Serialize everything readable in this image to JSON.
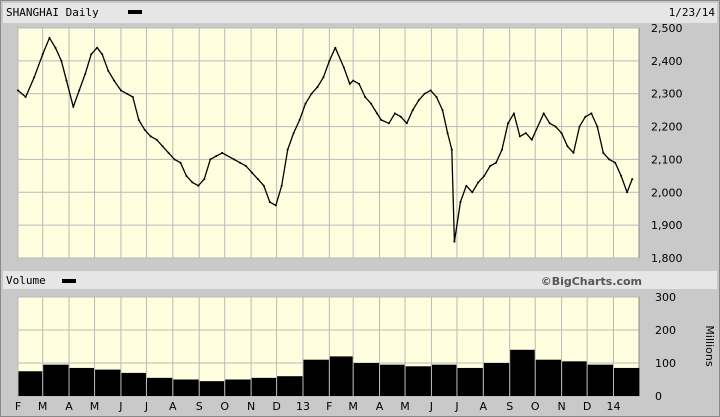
{
  "header": {
    "title": "SHANGHAI Daily",
    "date": "1/23/14"
  },
  "volume_panel": {
    "title": "Volume",
    "watermark": "©BigCharts.com",
    "unit_label": "Millions"
  },
  "colors": {
    "plot_background": "#ffffe0",
    "frame": "#c9c9c9",
    "header_strip": "#e6e6e6",
    "grid": "#b9b9b9",
    "series": "#000000"
  },
  "chart_data": [
    {
      "type": "line",
      "title": "SHANGHAI Daily",
      "x": [
        "2012-02-01",
        "2012-02-10",
        "2012-02-20",
        "2012-03-01",
        "2012-03-09",
        "2012-03-16",
        "2012-03-23",
        "2012-03-29",
        "2012-04-06",
        "2012-04-13",
        "2012-04-20",
        "2012-04-27",
        "2012-05-04",
        "2012-05-10",
        "2012-05-17",
        "2012-05-24",
        "2012-06-01",
        "2012-06-08",
        "2012-06-15",
        "2012-06-22",
        "2012-06-29",
        "2012-07-06",
        "2012-07-13",
        "2012-07-20",
        "2012-07-27",
        "2012-08-03",
        "2012-08-10",
        "2012-08-17",
        "2012-08-24",
        "2012-08-31",
        "2012-09-07",
        "2012-09-14",
        "2012-09-21",
        "2012-09-28",
        "2012-10-12",
        "2012-10-19",
        "2012-10-26",
        "2012-11-02",
        "2012-11-09",
        "2012-11-16",
        "2012-11-23",
        "2012-11-30",
        "2012-12-07",
        "2012-12-14",
        "2012-12-21",
        "2012-12-28",
        "2013-01-04",
        "2013-01-11",
        "2013-01-18",
        "2013-01-25",
        "2013-02-01",
        "2013-02-08",
        "2013-02-18",
        "2013-02-25",
        "2013-03-01",
        "2013-03-08",
        "2013-03-15",
        "2013-03-22",
        "2013-03-29",
        "2013-04-03",
        "2013-04-12",
        "2013-04-19",
        "2013-04-26",
        "2013-05-03",
        "2013-05-10",
        "2013-05-17",
        "2013-05-24",
        "2013-05-31",
        "2013-06-07",
        "2013-06-14",
        "2013-06-20",
        "2013-06-25",
        "2013-06-28",
        "2013-07-05",
        "2013-07-12",
        "2013-07-19",
        "2013-07-26",
        "2013-08-02",
        "2013-08-09",
        "2013-08-16",
        "2013-08-23",
        "2013-08-30",
        "2013-09-06",
        "2013-09-13",
        "2013-09-20",
        "2013-09-27",
        "2013-10-11",
        "2013-10-18",
        "2013-10-25",
        "2013-11-01",
        "2013-11-08",
        "2013-11-15",
        "2013-11-22",
        "2013-11-29",
        "2013-12-06",
        "2013-12-13",
        "2013-12-20",
        "2013-12-27",
        "2014-01-03",
        "2014-01-10",
        "2014-01-17",
        "2014-01-23"
      ],
      "series": [
        {
          "values": [
            2310,
            2290,
            2350,
            2420,
            2470,
            2440,
            2400,
            2340,
            2260,
            2310,
            2360,
            2420,
            2440,
            2420,
            2370,
            2340,
            2310,
            2300,
            2290,
            2220,
            2190,
            2170,
            2160,
            2140,
            2120,
            2100,
            2090,
            2050,
            2030,
            2020,
            2040,
            2100,
            2110,
            2120,
            2100,
            2090,
            2080,
            2060,
            2040,
            2020,
            1970,
            1960,
            2020,
            2130,
            2180,
            2220,
            2270,
            2300,
            2320,
            2350,
            2400,
            2440,
            2380,
            2330,
            2340,
            2330,
            2290,
            2270,
            2240,
            2220,
            2210,
            2240,
            2230,
            2210,
            2250,
            2280,
            2300,
            2310,
            2290,
            2250,
            2180,
            2130,
            1850,
            1970,
            2020,
            2000,
            2030,
            2050,
            2080,
            2090,
            2130,
            2210,
            2240,
            2170,
            2180,
            2160,
            2240,
            2210,
            2200,
            2180,
            2140,
            2120,
            2200,
            2230,
            2240,
            2200,
            2120,
            2100,
            2090,
            2050,
            2000,
            2040
          ]
        }
      ],
      "ylim": [
        1800,
        2500
      ],
      "y_ticks": [
        "2,500",
        "2,400",
        "2,300",
        "2,200",
        "2,100",
        "2,000",
        "1,900",
        "1,800"
      ],
      "x_tick_labels": [
        "F",
        "M",
        "A",
        "M",
        "J",
        "J",
        "A",
        "S",
        "O",
        "N",
        "D",
        "13",
        "F",
        "M",
        "A",
        "M",
        "J",
        "J",
        "A",
        "S",
        "O",
        "N",
        "D",
        "14"
      ],
      "grid": true
    },
    {
      "type": "bar",
      "title": "Volume",
      "ylabel": "Millions",
      "x": [
        "2012-02",
        "2012-03",
        "2012-04",
        "2012-05",
        "2012-06",
        "2012-07",
        "2012-08",
        "2012-09",
        "2012-10",
        "2012-11",
        "2012-12",
        "2013-01",
        "2013-02",
        "2013-03",
        "2013-04",
        "2013-05",
        "2013-06",
        "2013-07",
        "2013-08",
        "2013-09",
        "2013-10",
        "2013-11",
        "2013-12",
        "2014-01"
      ],
      "values": [
        75,
        95,
        85,
        80,
        70,
        55,
        50,
        45,
        50,
        55,
        60,
        110,
        120,
        100,
        95,
        90,
        95,
        85,
        100,
        140,
        110,
        105,
        95,
        85
      ],
      "ylim": [
        0,
        300
      ],
      "y_ticks": [
        "300",
        "200",
        "100",
        "0"
      ],
      "grid": true
    }
  ]
}
